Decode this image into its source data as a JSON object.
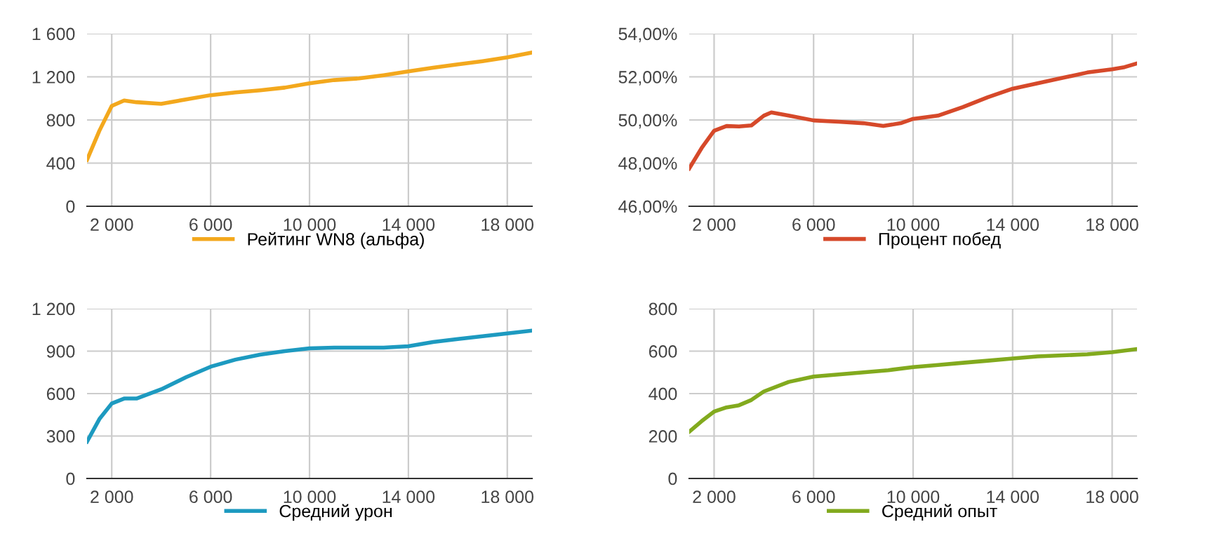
{
  "chart_data": [
    {
      "type": "line",
      "x": [
        1000,
        1500,
        2000,
        2500,
        3000,
        4000,
        5000,
        6000,
        7000,
        8000,
        9000,
        10000,
        11000,
        12000,
        13000,
        14000,
        15000,
        16000,
        17000,
        18000,
        19000
      ],
      "series": [
        {
          "name": "Рейтинг WN8 (альфа)",
          "color": "#f3a81d",
          "values": [
            430,
            700,
            930,
            980,
            965,
            950,
            990,
            1030,
            1055,
            1075,
            1100,
            1140,
            1170,
            1185,
            1215,
            1250,
            1285,
            1315,
            1345,
            1380,
            1425
          ]
        }
      ],
      "xlim": [
        1000,
        19000
      ],
      "xticks": [
        {
          "value": 2000,
          "label": "2 000"
        },
        {
          "value": 6000,
          "label": "6 000"
        },
        {
          "value": 10000,
          "label": "10 000"
        },
        {
          "value": 14000,
          "label": "14 000"
        },
        {
          "value": 18000,
          "label": "18 000"
        }
      ],
      "ylim": [
        0,
        1600
      ],
      "yticks": [
        0,
        400,
        800,
        {
          "value": 1200,
          "label": "1 200"
        },
        {
          "value": 1600,
          "label": "1 600"
        }
      ],
      "grid": true,
      "legend": "bottom"
    },
    {
      "type": "line",
      "x": [
        1000,
        1500,
        2000,
        2500,
        3000,
        3500,
        4000,
        4300,
        5000,
        6000,
        7000,
        8000,
        8800,
        9500,
        10000,
        11000,
        12000,
        13000,
        14000,
        15000,
        16000,
        17000,
        18000,
        18500,
        19000
      ],
      "series": [
        {
          "name": "Процент побед",
          "color": "#d6492a",
          "values": [
            47.75,
            48.7,
            49.5,
            49.72,
            49.7,
            49.75,
            50.2,
            50.35,
            50.2,
            49.98,
            49.92,
            49.85,
            49.72,
            49.85,
            50.05,
            50.2,
            50.6,
            51.05,
            51.45,
            51.7,
            51.95,
            52.2,
            52.35,
            52.45,
            52.62
          ]
        }
      ],
      "xlim": [
        1000,
        19000
      ],
      "xticks": [
        {
          "value": 2000,
          "label": "2 000"
        },
        {
          "value": 6000,
          "label": "6 000"
        },
        {
          "value": 10000,
          "label": "10 000"
        },
        {
          "value": 14000,
          "label": "14 000"
        },
        {
          "value": 18000,
          "label": "18 000"
        }
      ],
      "ylim": [
        46,
        54
      ],
      "yticks": [
        {
          "value": 46,
          "label": "46,00%"
        },
        {
          "value": 48,
          "label": "48,00%"
        },
        {
          "value": 50,
          "label": "50,00%"
        },
        {
          "value": 52,
          "label": "52,00%"
        },
        {
          "value": 54,
          "label": "54,00%"
        }
      ],
      "grid": true,
      "legend": "bottom"
    },
    {
      "type": "line",
      "x": [
        1000,
        1500,
        2000,
        2500,
        3000,
        4000,
        5000,
        6000,
        7000,
        8000,
        9000,
        10000,
        11000,
        12000,
        13000,
        14000,
        15000,
        16000,
        17000,
        18000,
        19000
      ],
      "series": [
        {
          "name": "Средний урон",
          "color": "#1d9ac0",
          "values": [
            260,
            420,
            530,
            565,
            565,
            630,
            715,
            790,
            840,
            875,
            900,
            920,
            925,
            925,
            925,
            935,
            965,
            985,
            1005,
            1025,
            1045
          ]
        }
      ],
      "xlim": [
        1000,
        19000
      ],
      "xticks": [
        {
          "value": 2000,
          "label": "2 000"
        },
        {
          "value": 6000,
          "label": "6 000"
        },
        {
          "value": 10000,
          "label": "10 000"
        },
        {
          "value": 14000,
          "label": "14 000"
        },
        {
          "value": 18000,
          "label": "18 000"
        }
      ],
      "ylim": [
        0,
        1200
      ],
      "yticks": [
        0,
        300,
        600,
        900,
        {
          "value": 1200,
          "label": "1 200"
        }
      ],
      "grid": true,
      "legend": "bottom"
    },
    {
      "type": "line",
      "x": [
        1000,
        1500,
        2000,
        2500,
        3000,
        3500,
        4000,
        5000,
        6000,
        7000,
        8000,
        9000,
        10000,
        11000,
        12000,
        13000,
        14000,
        15000,
        16000,
        17000,
        18000,
        19000
      ],
      "series": [
        {
          "name": "Средний опыт",
          "color": "#82aa1e",
          "values": [
            220,
            270,
            315,
            335,
            345,
            370,
            410,
            455,
            480,
            490,
            500,
            510,
            525,
            535,
            545,
            555,
            565,
            575,
            580,
            585,
            595,
            610
          ]
        }
      ],
      "xlim": [
        1000,
        19000
      ],
      "xticks": [
        {
          "value": 2000,
          "label": "2 000"
        },
        {
          "value": 6000,
          "label": "6 000"
        },
        {
          "value": 10000,
          "label": "10 000"
        },
        {
          "value": 14000,
          "label": "14 000"
        },
        {
          "value": 18000,
          "label": "18 000"
        }
      ],
      "ylim": [
        0,
        800
      ],
      "yticks": [
        0,
        200,
        400,
        600,
        800
      ],
      "grid": true,
      "legend": "bottom"
    }
  ]
}
